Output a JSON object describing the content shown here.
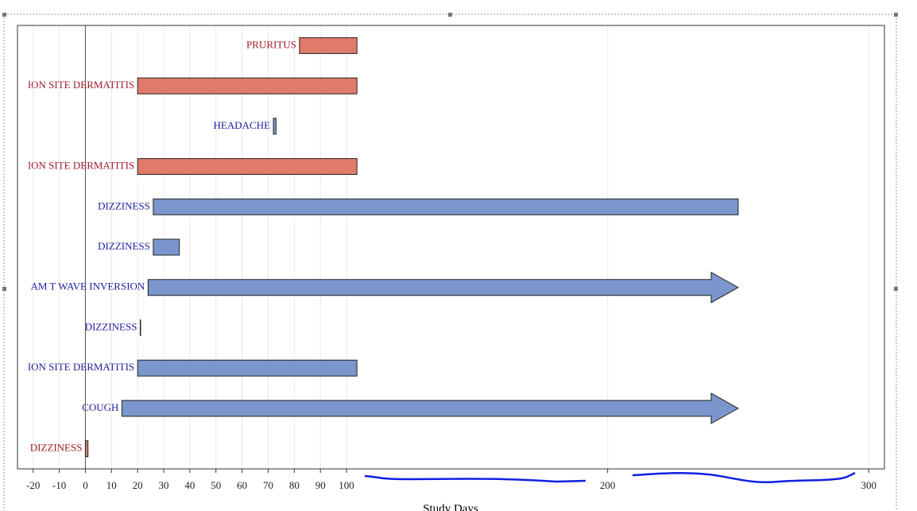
{
  "chart_data": {
    "type": "timeline",
    "xlabel": "Study Days",
    "xlim": [
      -26,
      306
    ],
    "xticks": [
      -20,
      -10,
      0,
      10,
      20,
      30,
      40,
      50,
      60,
      70,
      80,
      90,
      100,
      200,
      300
    ],
    "grid": true,
    "events": [
      {
        "label": "PRURITUS",
        "start": 82,
        "end": 104,
        "color": "#e07b6b",
        "text_color": "#a01c28",
        "arrow": false
      },
      {
        "label": "ION SITE DERMATITIS",
        "start": 20,
        "end": 104,
        "color": "#e07b6b",
        "text_color": "#a01c28",
        "arrow": false
      },
      {
        "label": "HEADACHE",
        "start": 72,
        "end": 73,
        "color": "#7b96cc",
        "text_color": "#2020a0",
        "arrow": false
      },
      {
        "label": "ION SITE DERMATITIS",
        "start": 20,
        "end": 104,
        "color": "#e07b6b",
        "text_color": "#a01c28",
        "arrow": false
      },
      {
        "label": "DIZZINESS",
        "start": 26,
        "end": 250,
        "color": "#7b96cc",
        "text_color": "#2020a0",
        "arrow": false
      },
      {
        "label": "DIZZINESS",
        "start": 26,
        "end": 36,
        "color": "#7b96cc",
        "text_color": "#2020a0",
        "arrow": false
      },
      {
        "label": "AM T WAVE INVERSION",
        "start": 24,
        "end": 250,
        "color": "#7b96cc",
        "text_color": "#2020a0",
        "arrow": true
      },
      {
        "label": "DIZZINESS",
        "start": 21,
        "end": 21,
        "color": "#7b96cc",
        "text_color": "#2020a0",
        "arrow": false
      },
      {
        "label": "ION SITE DERMATITIS",
        "start": 20,
        "end": 104,
        "color": "#7b96cc",
        "text_color": "#2020a0",
        "arrow": false
      },
      {
        "label": "COUGH",
        "start": 14,
        "end": 250,
        "color": "#7b96cc",
        "text_color": "#2020a0",
        "arrow": true
      },
      {
        "label": "DIZZINESS",
        "start": 0,
        "end": 1,
        "color": "#e07b6b",
        "text_color": "#a01c28",
        "arrow": false
      }
    ]
  }
}
